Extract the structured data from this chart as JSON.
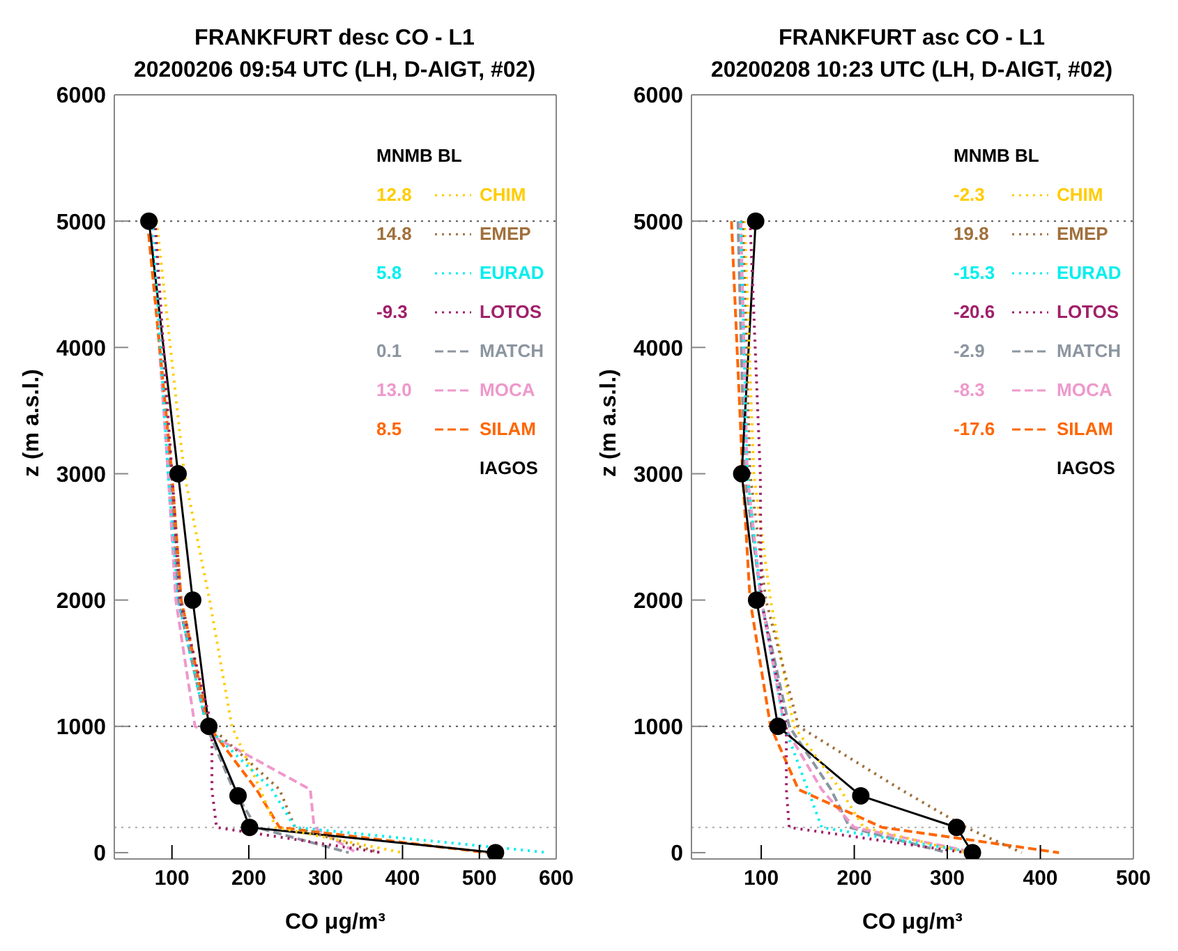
{
  "chart_data": [
    {
      "type": "line",
      "title": "FRANKFURT desc CO - L1",
      "subtitle": "20200206 09:54 UTC (LH, D-AIGT, #02)",
      "xlabel": "CO μg/m³",
      "ylabel": "z (m a.s.l.)",
      "legend_title": "MNMB BL",
      "legend": "top right",
      "grid": false,
      "xlim": [
        25,
        600
      ],
      "xticks": [
        100,
        200,
        300,
        400,
        500,
        600
      ],
      "ylim": [
        -50,
        6000
      ],
      "yticks": [
        0,
        1000,
        2000,
        3000,
        4000,
        5000,
        6000
      ],
      "annotations": [
        "12.8",
        "14.8",
        "5.8",
        "-9.3",
        "0.1",
        "13.0",
        "8.5"
      ],
      "ref_lines": [
        {
          "axis": "y",
          "value": 5000,
          "color": "#555555",
          "line_style": "dotted"
        },
        {
          "axis": "y",
          "value": 1000,
          "color": "#555555",
          "line_style": "dotted"
        },
        {
          "axis": "y",
          "value": 200,
          "color": "#aaaaaa",
          "line_style": "dotted"
        }
      ],
      "series": [
        {
          "name": "CHIM",
          "color": "#ffcc00",
          "line_style": "dotted",
          "marker": "none",
          "x": [
            80,
            116,
            149,
            178,
            215,
            235,
            400
          ],
          "values": [
            5000,
            3000,
            2000,
            1000,
            500,
            200,
            0
          ]
        },
        {
          "name": "EMEP",
          "color": "#a0703c",
          "line_style": "dotted",
          "marker": "none",
          "x": [
            75,
            100,
            112,
            150,
            240,
            260,
            370
          ],
          "values": [
            5000,
            3000,
            2000,
            1000,
            500,
            200,
            0
          ]
        },
        {
          "name": "EURAD",
          "color": "#00eeee",
          "line_style": "dotted",
          "marker": "none",
          "x": [
            75,
            95,
            108,
            145,
            230,
            260,
            590
          ],
          "values": [
            5000,
            3000,
            2000,
            1000,
            500,
            200,
            0
          ]
        },
        {
          "name": "LOTOS",
          "color": "#a0206a",
          "line_style": "dotted",
          "marker": "none",
          "x": [
            78,
            100,
            110,
            152,
            152,
            158,
            372
          ],
          "values": [
            5000,
            3000,
            2000,
            1000,
            500,
            200,
            0
          ]
        },
        {
          "name": "MATCH",
          "color": "#8c96a0",
          "line_style": "dashed",
          "marker": "none",
          "x": [
            70,
            98,
            108,
            145,
            180,
            210,
            330
          ],
          "values": [
            5000,
            3000,
            2000,
            1000,
            500,
            200,
            0
          ]
        },
        {
          "name": "MOCA",
          "color": "#ee99cc",
          "line_style": "dashed",
          "marker": "none",
          "x": [
            72,
            95,
            105,
            130,
            280,
            285,
            340
          ],
          "values": [
            5000,
            3000,
            2000,
            1000,
            500,
            200,
            0
          ]
        },
        {
          "name": "SILAM",
          "color": "#ff6600",
          "line_style": "dashed",
          "marker": "none",
          "x": [
            68,
            100,
            112,
            148,
            210,
            240,
            510
          ],
          "values": [
            5000,
            3000,
            2000,
            1000,
            500,
            200,
            0
          ]
        },
        {
          "name": "IAGOS",
          "color": "#000000",
          "line_style": "solid",
          "marker": "circle",
          "x": [
            70,
            108,
            127,
            148,
            186,
            201,
            521
          ],
          "values": [
            5000,
            3000,
            2000,
            1000,
            450,
            200,
            0
          ]
        }
      ]
    },
    {
      "type": "line",
      "title": "FRANKFURT asc CO - L1",
      "subtitle": "20200208 10:23 UTC (LH, D-AIGT, #02)",
      "xlabel": "CO μg/m³",
      "ylabel": "z (m a.s.l.)",
      "legend_title": "MNMB BL",
      "legend": "top right",
      "grid": false,
      "xlim": [
        25,
        500
      ],
      "xticks": [
        100,
        200,
        300,
        400,
        500
      ],
      "ylim": [
        -50,
        6000
      ],
      "yticks": [
        0,
        1000,
        2000,
        3000,
        4000,
        5000,
        6000
      ],
      "annotations": [
        "-2.3",
        "19.8",
        "-15.3",
        "-20.6",
        "-2.9",
        "-8.3",
        "-17.6"
      ],
      "ref_lines": [
        {
          "axis": "y",
          "value": 5000,
          "color": "#555555",
          "line_style": "dotted"
        },
        {
          "axis": "y",
          "value": 1000,
          "color": "#555555",
          "line_style": "dotted"
        },
        {
          "axis": "y",
          "value": 200,
          "color": "#aaaaaa",
          "line_style": "dotted"
        }
      ],
      "series": [
        {
          "name": "CHIM",
          "color": "#ffcc00",
          "line_style": "dotted",
          "marker": "none",
          "x": [
            82,
            92,
            110,
            135,
            185,
            210,
            320
          ],
          "values": [
            5000,
            3000,
            2000,
            1000,
            500,
            200,
            0
          ]
        },
        {
          "name": "EMEP",
          "color": "#a0703c",
          "line_style": "dotted",
          "marker": "none",
          "x": [
            80,
            88,
            105,
            140,
            250,
            320,
            380
          ],
          "values": [
            5000,
            3000,
            2000,
            1000,
            500,
            200,
            0
          ]
        },
        {
          "name": "EURAD",
          "color": "#00eeee",
          "line_style": "dotted",
          "marker": "none",
          "x": [
            78,
            85,
            100,
            125,
            150,
            165,
            330
          ],
          "values": [
            5000,
            3000,
            2000,
            1000,
            500,
            200,
            0
          ]
        },
        {
          "name": "LOTOS",
          "color": "#a0206a",
          "line_style": "dotted",
          "marker": "none",
          "x": [
            88,
            99,
            100,
            127,
            127,
            130,
            320
          ],
          "values": [
            5000,
            3000,
            2000,
            1000,
            500,
            200,
            0
          ]
        },
        {
          "name": "MATCH",
          "color": "#8c96a0",
          "line_style": "dashed",
          "marker": "none",
          "x": [
            75,
            82,
            100,
            130,
            175,
            195,
            300
          ],
          "values": [
            5000,
            3000,
            2000,
            1000,
            500,
            200,
            0
          ]
        },
        {
          "name": "MOCA",
          "color": "#ee99cc",
          "line_style": "dashed",
          "marker": "none",
          "x": [
            78,
            85,
            100,
            125,
            165,
            200,
            330
          ],
          "values": [
            5000,
            3000,
            2000,
            1000,
            500,
            200,
            0
          ]
        },
        {
          "name": "SILAM",
          "color": "#ff6600",
          "line_style": "dashed",
          "marker": "none",
          "x": [
            68,
            80,
            88,
            110,
            140,
            230,
            420
          ],
          "values": [
            5000,
            3000,
            2000,
            1000,
            500,
            200,
            0
          ]
        },
        {
          "name": "IAGOS",
          "color": "#000000",
          "line_style": "solid",
          "marker": "circle",
          "x": [
            94,
            79,
            95,
            118,
            207,
            310,
            327
          ],
          "values": [
            5000,
            3000,
            2000,
            1000,
            450,
            200,
            0
          ]
        }
      ]
    }
  ]
}
